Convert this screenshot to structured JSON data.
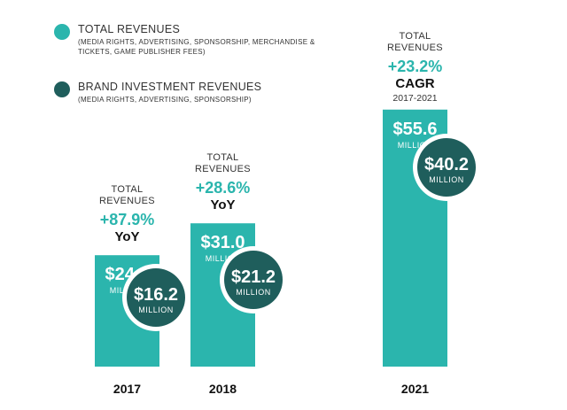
{
  "legend": [
    {
      "title": "TOTAL REVENUES",
      "lines": [
        "(MEDIA RIGHTS, ADVERTISING, SPONSORSHIP, MERCHANDISE &",
        "TICKETS, GAME PUBLISHER FEES)"
      ],
      "color": "#2bb5ad"
    },
    {
      "title": "BRAND INVESTMENT REVENUES",
      "lines": [
        "(MEDIA RIGHTS, ADVERTISING, SPONSORSHIP)"
      ],
      "color": "#1f5e5c"
    }
  ],
  "colors": {
    "total": "#2bb5ad",
    "brand": "#1f5e5c",
    "growth": "#2bb5ad"
  },
  "chart_data": {
    "type": "bar",
    "categories": [
      "2017",
      "2018",
      "2021"
    ],
    "series": [
      {
        "name": "TOTAL REVENUES",
        "values": [
          24.1,
          31.0,
          55.6
        ],
        "labels": [
          "$24.1",
          "$31.0",
          "$55.6"
        ]
      },
      {
        "name": "BRAND INVESTMENT REVENUES",
        "values": [
          16.2,
          21.2,
          40.2
        ],
        "labels": [
          "$16.2",
          "$21.2",
          "$40.2"
        ]
      }
    ],
    "unit_label": "MILLION",
    "annotations": [
      {
        "category": "2017",
        "label_lines": [
          "TOTAL",
          "REVENUES"
        ],
        "growth": "+87.9%",
        "period": "YoY"
      },
      {
        "category": "2018",
        "label_lines": [
          "TOTAL",
          "REVENUES"
        ],
        "growth": "+28.6%",
        "period": "YoY"
      },
      {
        "category": "2021",
        "label_lines": [
          "TOTAL",
          "REVENUES"
        ],
        "growth": "+23.2%",
        "period": "CAGR",
        "range": "2017-2021"
      }
    ]
  }
}
